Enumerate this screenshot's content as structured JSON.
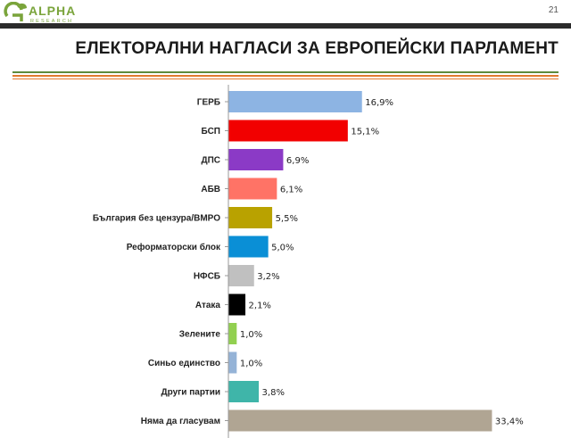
{
  "header": {
    "logo_text": "ALPHA",
    "logo_subtext": "RESEARCH",
    "page_number": "21"
  },
  "colors": {
    "logo_green": "#7aa43b",
    "band": "#2b2b2b",
    "rule_green": "#5d8a3c",
    "rule_orange": "#e07a2e"
  },
  "chart_data": {
    "type": "bar",
    "orientation": "horizontal",
    "title": "ЕЛЕКТОРАЛНИ НАГЛАСИ ЗА ЕВРОПЕЙСКИ ПАРЛАМЕНТ",
    "categories": [
      "ГЕРБ",
      "БСП",
      "ДПС",
      "АБВ",
      "България без цензура/ВМРО",
      "Реформаторски блок",
      "НФСБ",
      "Атака",
      "Зелените",
      "Синьо единство",
      "Други партии",
      "Няма да гласувам"
    ],
    "values": [
      16.9,
      15.1,
      6.9,
      6.1,
      5.5,
      5.0,
      3.2,
      2.1,
      1.0,
      1.0,
      3.8,
      33.4
    ],
    "value_labels": [
      "16,9%",
      "15,1%",
      "6,9%",
      "6,1%",
      "5,5%",
      "5,0%",
      "3,2%",
      "2,1%",
      "1,0%",
      "1,0%",
      "3,8%",
      "33,4%"
    ],
    "colors": [
      "#8db4e3",
      "#f20000",
      "#8b3ac6",
      "#ff7366",
      "#b9a200",
      "#0a8fd6",
      "#c0c0c0",
      "#000000",
      "#92d050",
      "#95b3d7",
      "#3fb5a9",
      "#b0a593"
    ],
    "xlim": [
      0,
      34
    ],
    "grid": false,
    "legend": "none"
  }
}
